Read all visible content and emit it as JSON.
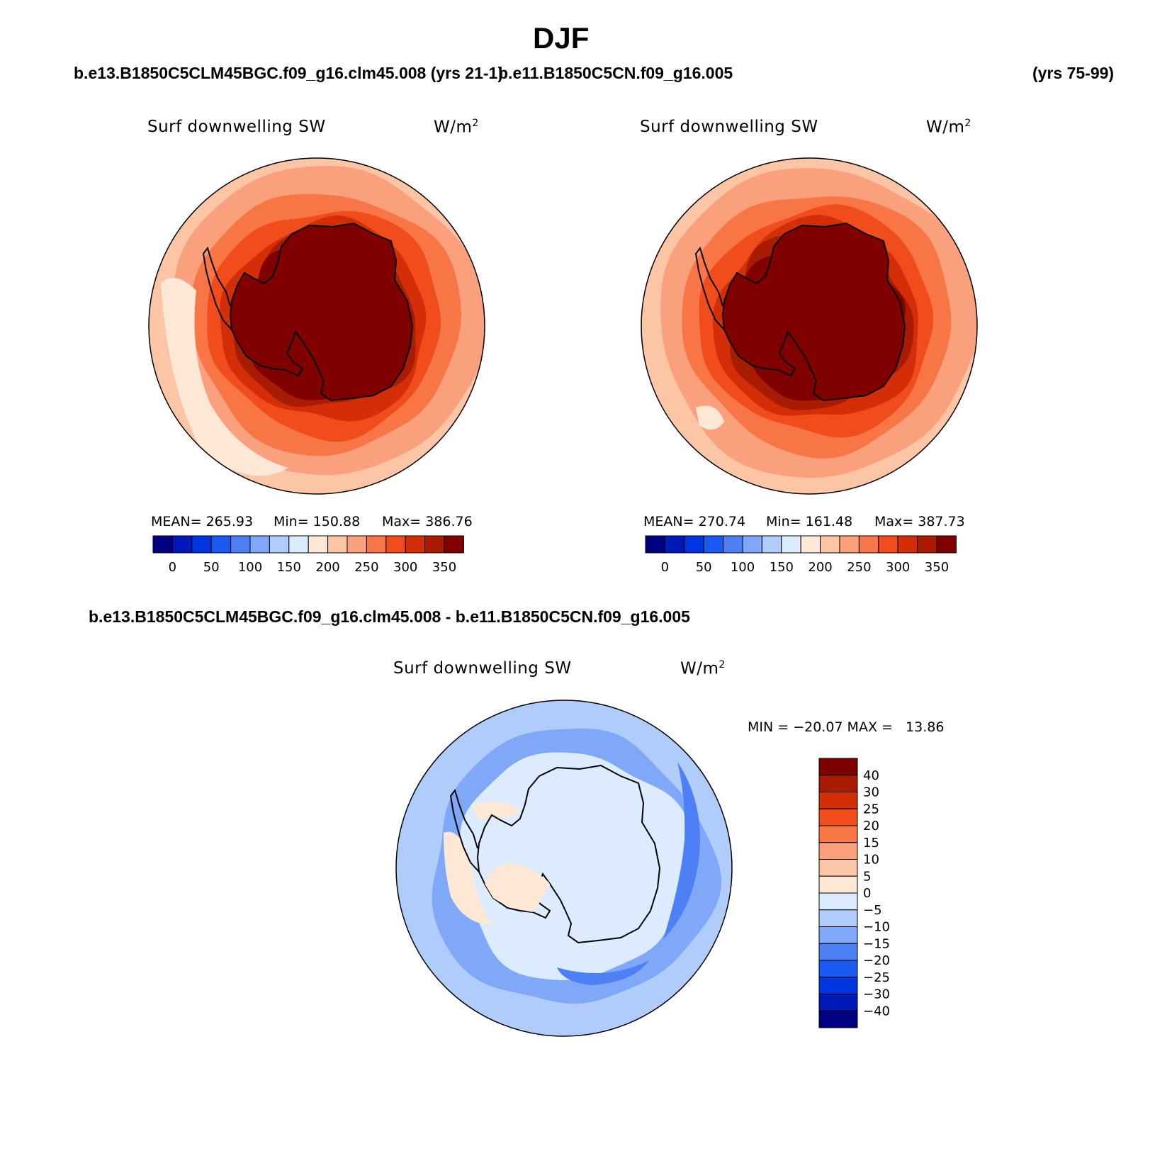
{
  "page_title": "DJF",
  "header": {
    "left_case": "b.e13.B1850C5CLM45BGC.f09_g16.clm45.008 (yrs 21-1)",
    "right_case": "b.e11.B1850C5CN.f09_g16.005",
    "right_years": "(yrs 75-99)"
  },
  "diff_header": "b.e13.B1850C5CLM45BGC.f09_g16.clm45.008 - b.e11.B1850C5CN.f09_g16.005",
  "colors": {
    "abs_scale": [
      "#000080",
      "#0019b8",
      "#0035e0",
      "#1a5af0",
      "#4d80f5",
      "#80a8f8",
      "#b0ccfa",
      "#dcebfd",
      "#fde8d6",
      "#fcc6a6",
      "#faa07c",
      "#f87646",
      "#f04c1c",
      "#d42e08",
      "#a81c04",
      "#800000"
    ],
    "diff_scale": [
      "#000080",
      "#0019b8",
      "#0035e0",
      "#1a5af0",
      "#4d80f5",
      "#80a8f8",
      "#b0ccfa",
      "#dcebfd",
      "#fde8d6",
      "#fcc6a6",
      "#faa07c",
      "#f87646",
      "#f04c1c",
      "#d42e08",
      "#a81c04",
      "#800000"
    ],
    "coastline": "#000000"
  },
  "chart_data": [
    {
      "type": "heatmap",
      "projection": "south-polar-stereographic",
      "title": "Surf downwelling SW",
      "units": "W/m²",
      "units_base": "W/m",
      "units_sup": "2",
      "case": "b.e13.B1850C5CLM45BGC.f09_g16.clm45.008",
      "stats": {
        "mean_label": "MEAN= 265.93",
        "min_label": "Min= 150.88",
        "max_label": "Max= 386.76",
        "mean": 265.93,
        "min": 150.88,
        "max": 386.76
      },
      "colorbar_ticks": [
        "0",
        "50",
        "100",
        "150",
        "200",
        "250",
        "300",
        "350"
      ],
      "contour_levels": [
        0,
        25,
        50,
        75,
        100,
        125,
        150,
        175,
        200,
        225,
        250,
        275,
        300,
        325,
        350
      ],
      "field_bands": [
        {
          "value": 200,
          "note": "outer ocean"
        },
        {
          "value": 225
        },
        {
          "value": 250
        },
        {
          "value": 275
        },
        {
          "value": 300
        },
        {
          "value": 325
        },
        {
          "value": 350
        },
        {
          "value": 386.76,
          "note": "antarctic plateau"
        }
      ]
    },
    {
      "type": "heatmap",
      "projection": "south-polar-stereographic",
      "title": "Surf downwelling SW",
      "units": "W/m²",
      "units_base": "W/m",
      "units_sup": "2",
      "case": "b.e11.B1850C5CN.f09_g16.005",
      "stats": {
        "mean_label": "MEAN= 270.74",
        "min_label": "Min= 161.48",
        "max_label": "Max= 387.73",
        "mean": 270.74,
        "min": 161.48,
        "max": 387.73
      },
      "colorbar_ticks": [
        "0",
        "50",
        "100",
        "150",
        "200",
        "250",
        "300",
        "350"
      ],
      "contour_levels": [
        0,
        25,
        50,
        75,
        100,
        125,
        150,
        175,
        200,
        225,
        250,
        275,
        300,
        325,
        350
      ],
      "field_bands": [
        {
          "value": 210,
          "note": "outer ocean"
        },
        {
          "value": 230
        },
        {
          "value": 255
        },
        {
          "value": 280
        },
        {
          "value": 305
        },
        {
          "value": 330
        },
        {
          "value": 355
        },
        {
          "value": 387.73,
          "note": "antarctic plateau"
        }
      ]
    },
    {
      "type": "heatmap",
      "projection": "south-polar-stereographic",
      "title": "Surf downwelling SW",
      "units": "W/m²",
      "units_base": "W/m",
      "units_sup": "2",
      "case": "difference",
      "stats": {
        "minmax_label": "MIN = −20.07 MAX =   13.86",
        "min": -20.07,
        "max": 13.86
      },
      "colorbar_ticks": [
        "40",
        "30",
        "25",
        "20",
        "15",
        "10",
        "5",
        "0",
        "−5",
        "−10",
        "−15",
        "−20",
        "−25",
        "−30",
        "−40"
      ],
      "contour_levels": [
        -40,
        -30,
        -25,
        -20,
        -15,
        -10,
        -5,
        0,
        5,
        10,
        15,
        20,
        25,
        30,
        40
      ]
    }
  ]
}
